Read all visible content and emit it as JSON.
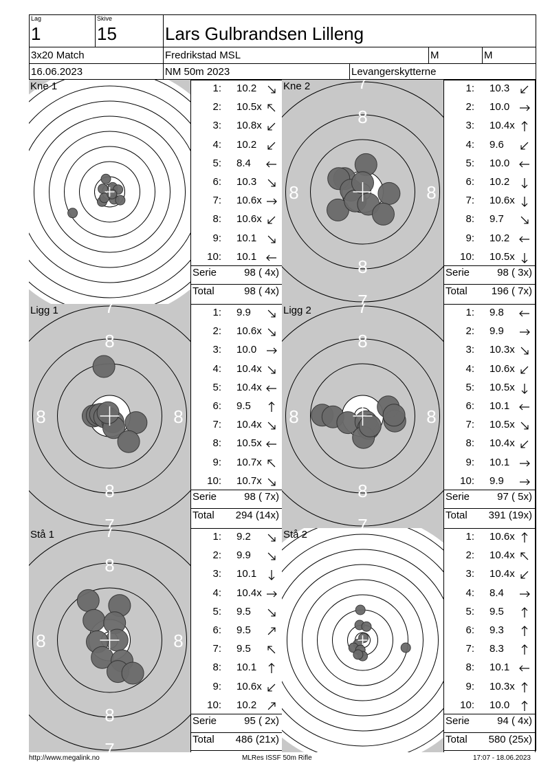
{
  "header": {
    "lag_label": "Lag",
    "lag_value": "1",
    "skive_label": "Skive",
    "skive_value": "15",
    "shooter": "Lars Gulbrandsen Lilleng",
    "program": "3x20 Match",
    "club": "Fredrikstad MSL",
    "class1": "M",
    "class2": "M",
    "date": "16.06.2023",
    "event": "NM 50m 2023",
    "team": "Levangerskytterne"
  },
  "labels": {
    "serie": "Serie",
    "total": "Total"
  },
  "panels": [
    {
      "name": "Kne 1",
      "view": "full",
      "shots": [
        {
          "n": "1:",
          "v": "10.2",
          "dir": "se"
        },
        {
          "n": "2:",
          "v": "10.5x",
          "dir": "nw"
        },
        {
          "n": "3:",
          "v": "10.8x",
          "dir": "sw"
        },
        {
          "n": "4:",
          "v": "10.2",
          "dir": "sw"
        },
        {
          "n": "5:",
          "v": "8.4",
          "dir": "w"
        },
        {
          "n": "6:",
          "v": "10.3",
          "dir": "se"
        },
        {
          "n": "7:",
          "v": "10.6x",
          "dir": "e"
        },
        {
          "n": "8:",
          "v": "10.6x",
          "dir": "sw"
        },
        {
          "n": "9:",
          "v": "10.1",
          "dir": "se"
        },
        {
          "n": "10:",
          "v": "10.1",
          "dir": "w"
        }
      ],
      "serie": "98 ( 4x)",
      "total": "98 ( 4x)",
      "holes": [
        [
          -0.25,
          0.85
        ],
        [
          0.2,
          0.3
        ],
        [
          0.55,
          0.15
        ],
        [
          -0.45,
          0.2
        ],
        [
          -0.5,
          -0.65
        ],
        [
          -2.45,
          -1.4
        ],
        [
          0.3,
          -0.5
        ],
        [
          -0.35,
          -0.4
        ],
        [
          0.7,
          -0.55
        ],
        [
          0.15,
          -0.15
        ]
      ]
    },
    {
      "name": "Kne 2",
      "view": "zoom",
      "shots": [
        {
          "n": "1:",
          "v": "10.3",
          "dir": "sw"
        },
        {
          "n": "2:",
          "v": "10.0",
          "dir": "e"
        },
        {
          "n": "3:",
          "v": "10.4x",
          "dir": "n"
        },
        {
          "n": "4:",
          "v": "9.6",
          "dir": "sw"
        },
        {
          "n": "5:",
          "v": "10.0",
          "dir": "w"
        },
        {
          "n": "6:",
          "v": "10.2",
          "dir": "s"
        },
        {
          "n": "7:",
          "v": "10.6x",
          "dir": "s"
        },
        {
          "n": "8:",
          "v": "9.7",
          "dir": "se"
        },
        {
          "n": "9:",
          "v": "10.2",
          "dir": "w"
        },
        {
          "n": "10:",
          "v": "10.5x",
          "dir": "s"
        }
      ],
      "serie": "98 ( 3x)",
      "total": "196 ( 7x)",
      "holes": [
        [
          0.2,
          1.65
        ],
        [
          -1.1,
          0.8
        ],
        [
          -1.45,
          0.8
        ],
        [
          -0.7,
          0.1
        ],
        [
          -1.5,
          -1.1
        ],
        [
          -0.45,
          -0.55
        ],
        [
          0.35,
          -0.75
        ],
        [
          1.6,
          -0.1
        ],
        [
          1.25,
          -1.35
        ],
        [
          0.0,
          0.55
        ]
      ]
    },
    {
      "name": "Ligg 1",
      "view": "zoom",
      "shots": [
        {
          "n": "1:",
          "v": "9.9",
          "dir": "se"
        },
        {
          "n": "2:",
          "v": "10.6x",
          "dir": "se"
        },
        {
          "n": "3:",
          "v": "10.0",
          "dir": "e"
        },
        {
          "n": "4:",
          "v": "10.4x",
          "dir": "se"
        },
        {
          "n": "5:",
          "v": "10.4x",
          "dir": "w"
        },
        {
          "n": "6:",
          "v": "9.5",
          "dir": "n"
        },
        {
          "n": "7:",
          "v": "10.4x",
          "dir": "se"
        },
        {
          "n": "8:",
          "v": "10.5x",
          "dir": "w"
        },
        {
          "n": "9:",
          "v": "10.7x",
          "dir": "nw"
        },
        {
          "n": "10:",
          "v": "10.7x",
          "dir": "se"
        }
      ],
      "serie": "98 ( 7x)",
      "total": "294 (14x)",
      "holes": [
        [
          -0.35,
          3.0
        ],
        [
          -1.0,
          0.0
        ],
        [
          -0.75,
          0.05
        ],
        [
          -0.55,
          0.1
        ],
        [
          -0.3,
          -0.05
        ],
        [
          0.2,
          -0.35
        ],
        [
          0.25,
          -0.7
        ],
        [
          1.6,
          -0.4
        ],
        [
          1.15,
          -1.55
        ],
        [
          -0.1,
          0.2
        ]
      ]
    },
    {
      "name": "Ligg 2",
      "view": "zoom",
      "shots": [
        {
          "n": "1:",
          "v": "9.8",
          "dir": "w"
        },
        {
          "n": "2:",
          "v": "9.9",
          "dir": "e"
        },
        {
          "n": "3:",
          "v": "10.3x",
          "dir": "se"
        },
        {
          "n": "4:",
          "v": "10.6x",
          "dir": "sw"
        },
        {
          "n": "5:",
          "v": "10.5x",
          "dir": "s"
        },
        {
          "n": "6:",
          "v": "10.1",
          "dir": "w"
        },
        {
          "n": "7:",
          "v": "10.5x",
          "dir": "se"
        },
        {
          "n": "8:",
          "v": "10.4x",
          "dir": "sw"
        },
        {
          "n": "9:",
          "v": "10.1",
          "dir": "e"
        },
        {
          "n": "10:",
          "v": "9.9",
          "dir": "e"
        }
      ],
      "serie": "97 ( 5x)",
      "total": "391 (19x)",
      "holes": [
        [
          -2.45,
          0.05
        ],
        [
          -1.8,
          -0.05
        ],
        [
          -0.9,
          -0.4
        ],
        [
          0.2,
          -0.35
        ],
        [
          0.35,
          -0.75
        ],
        [
          0.05,
          -1.3
        ],
        [
          1.55,
          0.55
        ],
        [
          1.95,
          -0.3
        ],
        [
          1.9,
          0.05
        ],
        [
          0.45,
          -0.6
        ]
      ]
    },
    {
      "name": "Stå 1",
      "view": "zoom",
      "shots": [
        {
          "n": "1:",
          "v": "9.2",
          "dir": "se"
        },
        {
          "n": "2:",
          "v": "9.9",
          "dir": "se"
        },
        {
          "n": "3:",
          "v": "10.1",
          "dir": "s"
        },
        {
          "n": "4:",
          "v": "10.4x",
          "dir": "e"
        },
        {
          "n": "5:",
          "v": "9.5",
          "dir": "se"
        },
        {
          "n": "6:",
          "v": "9.5",
          "dir": "ne"
        },
        {
          "n": "7:",
          "v": "9.5",
          "dir": "nw"
        },
        {
          "n": "8:",
          "v": "10.1",
          "dir": "n"
        },
        {
          "n": "9:",
          "v": "10.6x",
          "dir": "sw"
        },
        {
          "n": "10:",
          "v": "10.2",
          "dir": "ne"
        }
      ],
      "serie": "95 ( 2x)",
      "total": "486 (21x)",
      "holes": [
        [
          -1.3,
          2.4
        ],
        [
          -0.95,
          1.2
        ],
        [
          0.6,
          2.1
        ],
        [
          0.3,
          1.05
        ],
        [
          0.45,
          0.0
        ],
        [
          -0.75,
          -0.1
        ],
        [
          -0.45,
          -1.05
        ],
        [
          0.75,
          -1.25
        ],
        [
          0.5,
          -1.9
        ],
        [
          1.4,
          -2.0
        ]
      ]
    },
    {
      "name": "Stå 2",
      "view": "full",
      "shots": [
        {
          "n": "1:",
          "v": "10.6x",
          "dir": "n"
        },
        {
          "n": "2:",
          "v": "10.4x",
          "dir": "nw"
        },
        {
          "n": "3:",
          "v": "10.4x",
          "dir": "sw"
        },
        {
          "n": "4:",
          "v": "8.4",
          "dir": "e"
        },
        {
          "n": "5:",
          "v": "9.5",
          "dir": "n"
        },
        {
          "n": "6:",
          "v": "9.3",
          "dir": "n"
        },
        {
          "n": "7:",
          "v": "8.3",
          "dir": "n"
        },
        {
          "n": "8:",
          "v": "10.1",
          "dir": "w"
        },
        {
          "n": "9:",
          "v": "10.3x",
          "dir": "n"
        },
        {
          "n": "10:",
          "v": "10.0",
          "dir": "n"
        }
      ],
      "serie": "94 ( 4x)",
      "total": "580 (25x)",
      "holes": [
        [
          -0.15,
          2.0
        ],
        [
          -0.2,
          1.0
        ],
        [
          0.25,
          0.9
        ],
        [
          2.85,
          -0.5
        ],
        [
          0.05,
          0.15
        ],
        [
          -0.3,
          -0.25
        ],
        [
          -0.6,
          -0.5
        ],
        [
          -0.15,
          -0.65
        ],
        [
          0.0,
          -1.05
        ],
        [
          -0.3,
          -0.95
        ]
      ]
    }
  ],
  "footer": {
    "left": "http://www.megalink.no",
    "center": "MLRes ISSF 50m Rifle",
    "right": "17:07 - 18.06.2023"
  }
}
